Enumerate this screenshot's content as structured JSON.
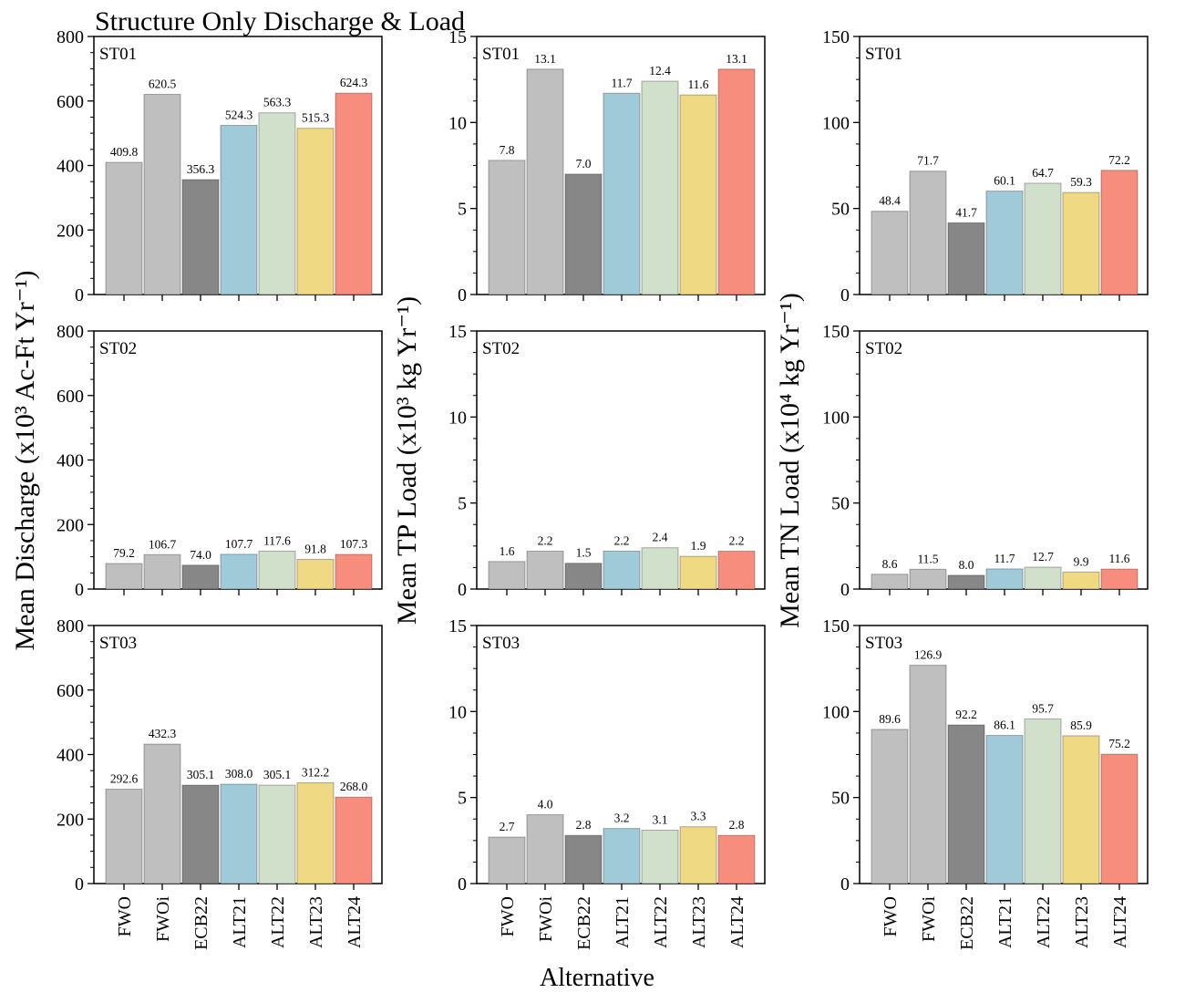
{
  "figure_title": "Structure Only Discharge & Load",
  "x_axis_label": "Alternative",
  "y_axis_labels": {
    "discharge": "Mean Discharge (x10³ Ac-Ft Yr⁻¹)",
    "tp": "Mean TP Load (x10³ kg Yr⁻¹)",
    "tn": "Mean TN Load (x10⁴ kg Yr⁻¹)"
  },
  "colors": {
    "FWO": "#bfbfbf",
    "FWOi": "#bfbfbf",
    "ECB22": "#878787",
    "ALT21": "#9fcbd8",
    "ALT22": "#d1e0cb",
    "ALT23": "#efd983",
    "ALT24": "#f78d7c"
  },
  "chart_data": [
    {
      "type": "bar",
      "panel": "ST01",
      "metric": "discharge",
      "title": "ST01",
      "categories": [
        "FWO",
        "FWOi",
        "ECB22",
        "ALT21",
        "ALT22",
        "ALT23",
        "ALT24"
      ],
      "values": [
        409.8,
        620.5,
        356.3,
        524.3,
        563.3,
        515.3,
        624.3
      ],
      "labels": [
        "409.8",
        "620.5",
        "356.3",
        "524.3",
        "563.3",
        "515.3",
        "624.3"
      ],
      "ylim": [
        0,
        800
      ],
      "yticks": [
        0,
        200,
        400,
        600,
        800
      ]
    },
    {
      "type": "bar",
      "panel": "ST01",
      "metric": "tp",
      "title": "ST01",
      "categories": [
        "FWO",
        "FWOi",
        "ECB22",
        "ALT21",
        "ALT22",
        "ALT23",
        "ALT24"
      ],
      "values": [
        7.8,
        13.1,
        7.0,
        11.7,
        12.4,
        11.6,
        13.1
      ],
      "labels": [
        "7.8",
        "13.1",
        "7.0",
        "11.7",
        "12.4",
        "11.6",
        "13.1"
      ],
      "ylim": [
        0,
        15
      ],
      "yticks": [
        0,
        5,
        10,
        15
      ]
    },
    {
      "type": "bar",
      "panel": "ST01",
      "metric": "tn",
      "title": "ST01",
      "categories": [
        "FWO",
        "FWOi",
        "ECB22",
        "ALT21",
        "ALT22",
        "ALT23",
        "ALT24"
      ],
      "values": [
        48.4,
        71.7,
        41.7,
        60.1,
        64.7,
        59.3,
        72.2
      ],
      "labels": [
        "48.4",
        "71.7",
        "41.7",
        "60.1",
        "64.7",
        "59.3",
        "72.2"
      ],
      "ylim": [
        0,
        150
      ],
      "yticks": [
        0,
        50,
        100,
        150
      ]
    },
    {
      "type": "bar",
      "panel": "ST02",
      "metric": "discharge",
      "title": "ST02",
      "categories": [
        "FWO",
        "FWOi",
        "ECB22",
        "ALT21",
        "ALT22",
        "ALT23",
        "ALT24"
      ],
      "values": [
        79.2,
        106.7,
        74.0,
        107.7,
        117.6,
        91.8,
        107.3
      ],
      "labels": [
        "79.2",
        "106.7",
        "74.0",
        "107.7",
        "117.6",
        "91.8",
        "107.3"
      ],
      "ylim": [
        0,
        800
      ],
      "yticks": [
        0,
        200,
        400,
        600,
        800
      ]
    },
    {
      "type": "bar",
      "panel": "ST02",
      "metric": "tp",
      "title": "ST02",
      "categories": [
        "FWO",
        "FWOi",
        "ECB22",
        "ALT21",
        "ALT22",
        "ALT23",
        "ALT24"
      ],
      "values": [
        1.6,
        2.2,
        1.5,
        2.2,
        2.4,
        1.9,
        2.2
      ],
      "labels": [
        "1.6",
        "2.2",
        "1.5",
        "2.2",
        "2.4",
        "1.9",
        "2.2"
      ],
      "ylim": [
        0,
        15
      ],
      "yticks": [
        0,
        5,
        10,
        15
      ]
    },
    {
      "type": "bar",
      "panel": "ST02",
      "metric": "tn",
      "title": "ST02",
      "categories": [
        "FWO",
        "FWOi",
        "ECB22",
        "ALT21",
        "ALT22",
        "ALT23",
        "ALT24"
      ],
      "values": [
        8.6,
        11.5,
        8.0,
        11.7,
        12.7,
        9.9,
        11.6
      ],
      "labels": [
        "8.6",
        "11.5",
        "8.0",
        "11.7",
        "12.7",
        "9.9",
        "11.6"
      ],
      "ylim": [
        0,
        150
      ],
      "yticks": [
        0,
        50,
        100,
        150
      ]
    },
    {
      "type": "bar",
      "panel": "ST03",
      "metric": "discharge",
      "title": "ST03",
      "categories": [
        "FWO",
        "FWOi",
        "ECB22",
        "ALT21",
        "ALT22",
        "ALT23",
        "ALT24"
      ],
      "values": [
        292.6,
        432.3,
        305.1,
        308.0,
        305.1,
        312.2,
        268.0
      ],
      "labels": [
        "292.6",
        "432.3",
        "305.1",
        "308.0",
        "305.1",
        "312.2",
        "268.0"
      ],
      "ylim": [
        0,
        800
      ],
      "yticks": [
        0,
        200,
        400,
        600,
        800
      ]
    },
    {
      "type": "bar",
      "panel": "ST03",
      "metric": "tp",
      "title": "ST03",
      "categories": [
        "FWO",
        "FWOi",
        "ECB22",
        "ALT21",
        "ALT22",
        "ALT23",
        "ALT24"
      ],
      "values": [
        2.7,
        4.0,
        2.8,
        3.2,
        3.1,
        3.3,
        2.8
      ],
      "labels": [
        "2.7",
        "4.0",
        "2.8",
        "3.2",
        "3.1",
        "3.3",
        "2.8"
      ],
      "ylim": [
        0,
        15
      ],
      "yticks": [
        0,
        5,
        10,
        15
      ]
    },
    {
      "type": "bar",
      "panel": "ST03",
      "metric": "tn",
      "title": "ST03",
      "categories": [
        "FWO",
        "FWOi",
        "ECB22",
        "ALT21",
        "ALT22",
        "ALT23",
        "ALT24"
      ],
      "values": [
        89.6,
        126.9,
        92.2,
        86.1,
        95.7,
        85.9,
        75.2
      ],
      "labels": [
        "89.6",
        "126.9",
        "92.2",
        "86.1",
        "95.7",
        "85.9",
        "75.2"
      ],
      "ylim": [
        0,
        150
      ],
      "yticks": [
        0,
        50,
        100,
        150
      ]
    }
  ]
}
